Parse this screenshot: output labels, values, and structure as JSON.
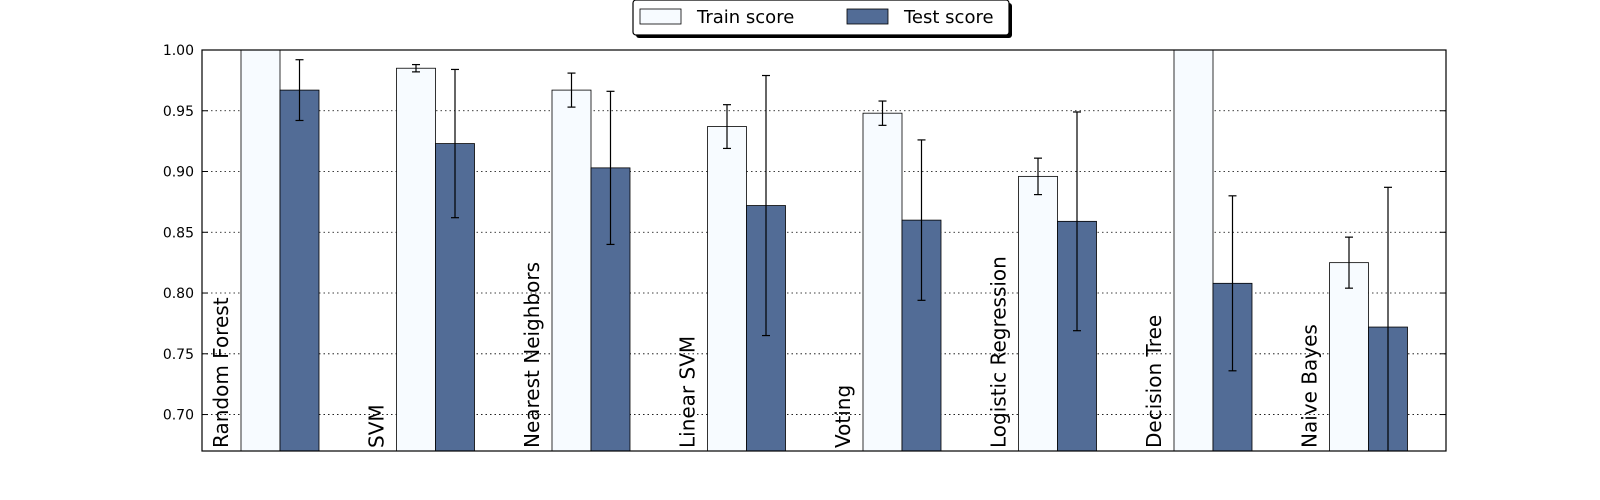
{
  "chart_data": {
    "type": "bar",
    "categories": [
      "Random Forest",
      "SVM",
      "Nearest Neighbors",
      "Linear SVM",
      "Voting",
      "Logistic Regression",
      "Decision Tree",
      "Naive Bayes"
    ],
    "series": [
      {
        "name": "Train score",
        "color": "#f7fbff",
        "values": [
          1.0,
          0.985,
          0.967,
          0.937,
          0.948,
          0.896,
          1.0,
          0.825
        ],
        "errors": [
          0.0,
          0.003,
          0.014,
          0.018,
          0.01,
          0.015,
          0.0,
          0.021
        ]
      },
      {
        "name": "Test score",
        "color": "#526c96",
        "values": [
          0.967,
          0.923,
          0.903,
          0.872,
          0.86,
          0.859,
          0.808,
          0.772
        ],
        "errors": [
          0.025,
          0.061,
          0.063,
          0.107,
          0.066,
          0.09,
          0.072,
          0.115
        ]
      }
    ],
    "yticks": [
      "0.70",
      "0.75",
      "0.80",
      "0.85",
      "0.90",
      "0.95",
      "1.00"
    ],
    "ylim": [
      0.67,
      1.0
    ],
    "grid": "horizontal-dotted",
    "legend_position": "top-center"
  }
}
